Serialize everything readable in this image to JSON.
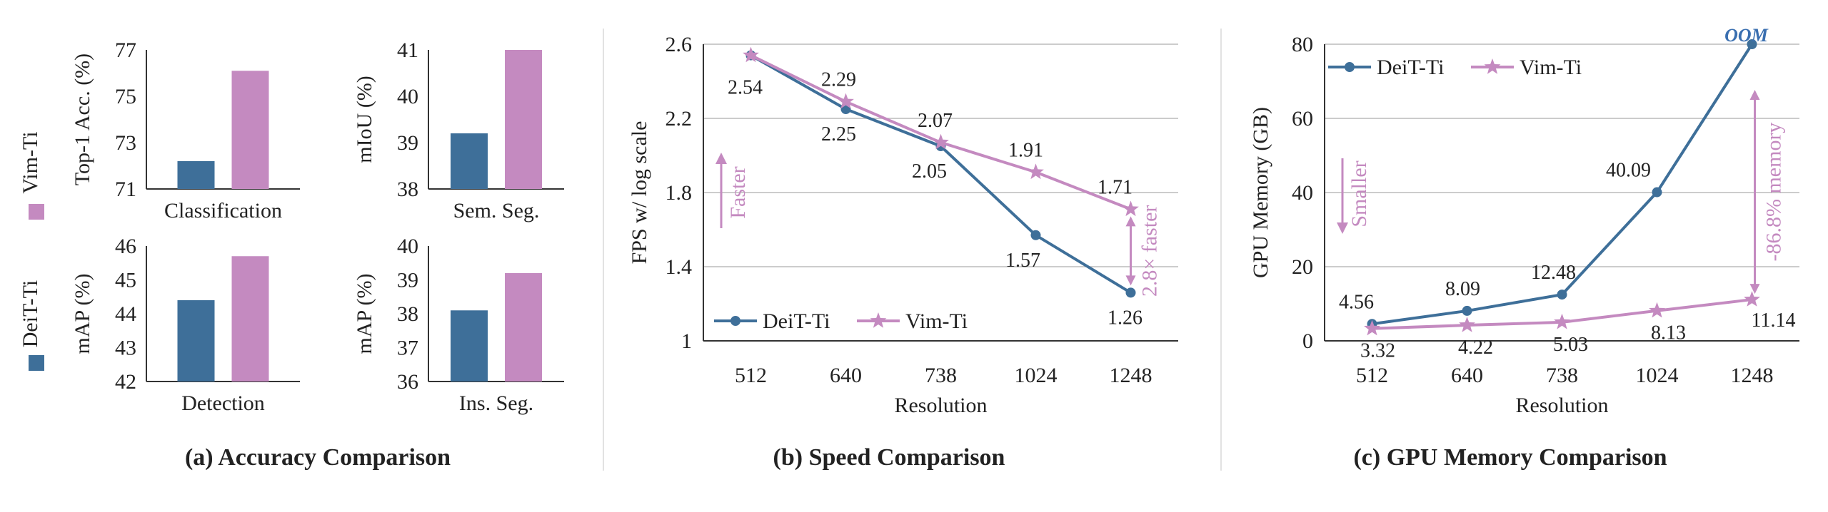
{
  "colors": {
    "deit": "#3e6f99",
    "vim": "#c48ac0"
  },
  "legend_a": [
    {
      "name": "Vim-Ti",
      "color": "#c48ac0"
    },
    {
      "name": "DeiT-Ti",
      "color": "#3e6f99"
    }
  ],
  "captions": {
    "a": "(a) Accuracy Comparison",
    "b": "(b) Speed Comparison",
    "c": "(c) GPU Memory Comparison"
  },
  "chart_data": [
    {
      "type": "bar",
      "id": "cls",
      "xlabel": "Classification",
      "ylabel": "Top-1 Acc. (%)",
      "categories": [
        "Classification"
      ],
      "ylim": [
        71,
        77
      ],
      "yticks": [
        71,
        73,
        75,
        77
      ],
      "series": [
        {
          "name": "DeiT-Ti",
          "values": [
            72.2
          ]
        },
        {
          "name": "Vim-Ti",
          "values": [
            76.1
          ]
        }
      ]
    },
    {
      "type": "bar",
      "id": "sem",
      "xlabel": "Sem. Seg.",
      "ylabel": "mIoU (%)",
      "categories": [
        "Sem. Seg."
      ],
      "ylim": [
        38,
        41
      ],
      "yticks": [
        38,
        39,
        40,
        41
      ],
      "series": [
        {
          "name": "DeiT-Ti",
          "values": [
            39.2
          ]
        },
        {
          "name": "Vim-Ti",
          "values": [
            41.0
          ]
        }
      ]
    },
    {
      "type": "bar",
      "id": "det",
      "xlabel": "Detection",
      "ylabel": "mAP (%)",
      "categories": [
        "Detection"
      ],
      "ylim": [
        42,
        46
      ],
      "yticks": [
        42,
        43,
        44,
        45,
        46
      ],
      "series": [
        {
          "name": "DeiT-Ti",
          "values": [
            44.4
          ]
        },
        {
          "name": "Vim-Ti",
          "values": [
            45.7
          ]
        }
      ]
    },
    {
      "type": "bar",
      "id": "ins",
      "xlabel": "Ins. Seg.",
      "ylabel": "mAP (%)",
      "categories": [
        "Ins. Seg."
      ],
      "ylim": [
        36,
        40
      ],
      "yticks": [
        36,
        37,
        38,
        39,
        40
      ],
      "series": [
        {
          "name": "DeiT-Ti",
          "values": [
            38.1
          ]
        },
        {
          "name": "Vim-Ti",
          "values": [
            39.2
          ]
        }
      ]
    },
    {
      "type": "line",
      "id": "speed",
      "xlabel": "Resolution",
      "ylabel": "FPS w/ log scale",
      "categories": [
        "512",
        "640",
        "738",
        "1024",
        "1248"
      ],
      "ylim": [
        1,
        2.6
      ],
      "yticks": [
        "1",
        "1.4",
        "1.8",
        "2.2",
        "2.6"
      ],
      "grid": true,
      "legend": "bottom-left",
      "series": [
        {
          "name": "DeiT-Ti",
          "values": [
            2.54,
            2.25,
            2.05,
            1.57,
            1.26
          ],
          "marker": "circle"
        },
        {
          "name": "Vim-Ti",
          "values": [
            2.54,
            2.29,
            2.07,
            1.91,
            1.71
          ],
          "marker": "star"
        }
      ],
      "labels": [
        {
          "series": "Vim-Ti",
          "index": 0,
          "text": "2.54"
        },
        {
          "series": "Vim-Ti",
          "index": 1,
          "text": "2.29"
        },
        {
          "series": "DeiT-Ti",
          "index": 1,
          "text": "2.25"
        },
        {
          "series": "Vim-Ti",
          "index": 2,
          "text": "2.07"
        },
        {
          "series": "DeiT-Ti",
          "index": 2,
          "text": "2.05"
        },
        {
          "series": "Vim-Ti",
          "index": 3,
          "text": "1.91"
        },
        {
          "series": "DeiT-Ti",
          "index": 3,
          "text": "1.57"
        },
        {
          "series": "Vim-Ti",
          "index": 4,
          "text": "1.71"
        },
        {
          "series": "DeiT-Ti",
          "index": 4,
          "text": "1.26"
        }
      ],
      "annotations": {
        "direction": "Faster",
        "gap": "2.8× faster"
      }
    },
    {
      "type": "line",
      "id": "memory",
      "xlabel": "Resolution",
      "ylabel": "GPU Memory (GB)",
      "categories": [
        "512",
        "640",
        "738",
        "1024",
        "1248"
      ],
      "ylim": [
        0,
        80
      ],
      "yticks": [
        "0",
        "20",
        "40",
        "60",
        "80"
      ],
      "grid": true,
      "legend": "top-left",
      "series": [
        {
          "name": "DeiT-Ti",
          "values": [
            4.56,
            8.09,
            12.48,
            40.09,
            80
          ],
          "marker": "circle"
        },
        {
          "name": "Vim-Ti",
          "values": [
            3.32,
            4.22,
            5.03,
            8.13,
            11.14
          ],
          "marker": "star"
        }
      ],
      "labels": [
        {
          "series": "DeiT-Ti",
          "index": 0,
          "text": "4.56"
        },
        {
          "series": "Vim-Ti",
          "index": 0,
          "text": "3.32"
        },
        {
          "series": "DeiT-Ti",
          "index": 1,
          "text": "8.09"
        },
        {
          "series": "Vim-Ti",
          "index": 1,
          "text": "4.22"
        },
        {
          "series": "DeiT-Ti",
          "index": 2,
          "text": "12.48"
        },
        {
          "series": "Vim-Ti",
          "index": 2,
          "text": "5.03"
        },
        {
          "series": "DeiT-Ti",
          "index": 3,
          "text": "40.09"
        },
        {
          "series": "Vim-Ti",
          "index": 3,
          "text": "8.13"
        },
        {
          "series": "Vim-Ti",
          "index": 4,
          "text": "11.14"
        }
      ],
      "annotations": {
        "direction": "Smaller",
        "gap": "-86.8% memory",
        "oom": "OOM"
      }
    }
  ]
}
